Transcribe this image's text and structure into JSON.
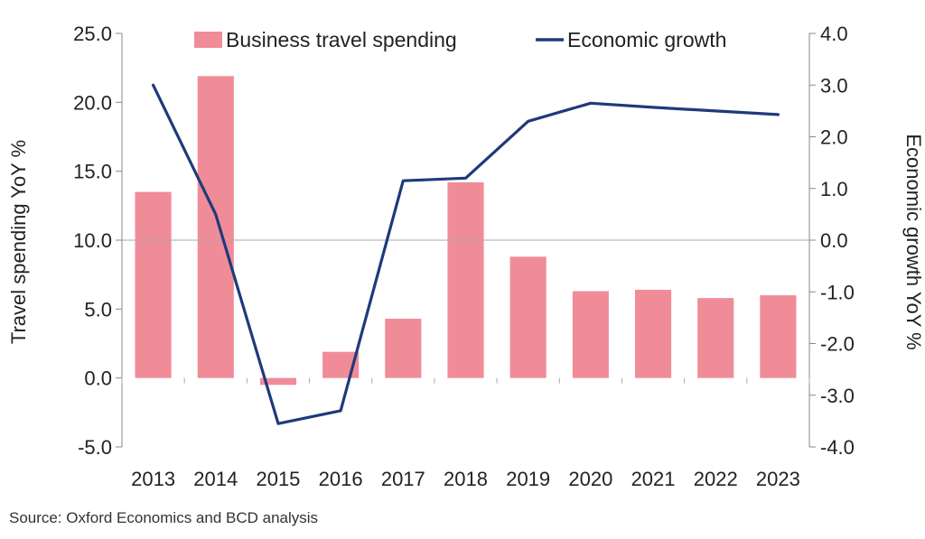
{
  "chart_data": {
    "type": "bar",
    "categories": [
      "2013",
      "2014",
      "2015",
      "2016",
      "2017",
      "2018",
      "2019",
      "2020",
      "2021",
      "2022",
      "2023"
    ],
    "series": [
      {
        "name": "Business travel spending",
        "type": "bar",
        "axis": "left",
        "color": "#f08c98",
        "values": [
          13.5,
          21.9,
          -0.5,
          1.9,
          4.3,
          14.2,
          8.8,
          6.3,
          6.4,
          5.8,
          6.0
        ]
      },
      {
        "name": "Economic growth",
        "type": "line",
        "axis": "right",
        "color": "#1f3a7a",
        "values": [
          3.0,
          0.5,
          -3.55,
          -3.3,
          1.15,
          1.2,
          2.3,
          2.65,
          2.57,
          2.5,
          2.43
        ]
      }
    ],
    "ylabel": "Travel spending YoY %",
    "y2label": "Economic growth YoY %",
    "ylim": [
      -5,
      25
    ],
    "y2lim": [
      -4,
      4
    ],
    "yticks": [
      "-5.0",
      "0.0",
      "5.0",
      "10.0",
      "15.0",
      "20.0",
      "25.0"
    ],
    "y2ticks": [
      "-4.0",
      "-3.0",
      "-2.0",
      "-1.0",
      "0.0",
      "1.0",
      "2.0",
      "3.0",
      "4.0"
    ],
    "legend_position": "top"
  },
  "source": "Source: Oxford Economics and BCD analysis"
}
